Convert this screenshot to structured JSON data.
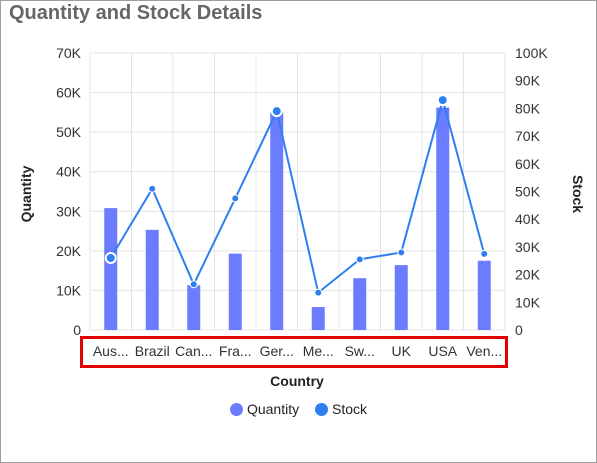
{
  "panel": {
    "title": "Quantity and Stock Details"
  },
  "chart_data": {
    "type": "bar",
    "title": "Quantity and Stock Details",
    "xlabel": "Country",
    "ylabel": "Quantity",
    "y2label": "Stock",
    "categories": [
      "Aus...",
      "Brazil",
      "Can...",
      "Fra...",
      "Ger...",
      "Me...",
      "Sw...",
      "UK",
      "USA",
      "Ven..."
    ],
    "ylim": [
      0,
      70000
    ],
    "y2lim": [
      0,
      100000
    ],
    "yticks": [
      "0",
      "10K",
      "20K",
      "30K",
      "40K",
      "50K",
      "60K",
      "70K"
    ],
    "y2ticks": [
      "0",
      "10K",
      "20K",
      "30K",
      "40K",
      "50K",
      "60K",
      "70K",
      "80K",
      "90K",
      "100K"
    ],
    "grid": true,
    "legend_position": "bottom",
    "series": [
      {
        "name": "Quantity",
        "type": "bar",
        "axis": "left",
        "color": "#6b7cff",
        "values": [
          30800,
          25300,
          11300,
          19300,
          55000,
          5800,
          13100,
          16400,
          56200,
          17500
        ]
      },
      {
        "name": "Stock",
        "type": "line",
        "axis": "right",
        "color": "#2f7ff0",
        "values": [
          26000,
          51000,
          16500,
          47500,
          79000,
          13500,
          25500,
          28000,
          83000,
          27500
        ]
      }
    ]
  },
  "legend": {
    "items": [
      {
        "label": "Quantity",
        "color": "#6b7cff"
      },
      {
        "label": "Stock",
        "color": "#2f7ff0"
      }
    ]
  }
}
